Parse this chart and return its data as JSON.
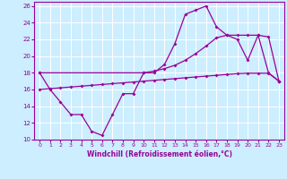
{
  "xlabel": "Windchill (Refroidissement éolien,°C)",
  "bg_color": "#cceeff",
  "grid_color": "#ffffff",
  "line_color": "#990099",
  "xlim": [
    -0.5,
    23.5
  ],
  "ylim": [
    10,
    26.5
  ],
  "yticks": [
    10,
    12,
    14,
    16,
    18,
    20,
    22,
    24,
    26
  ],
  "xticks": [
    0,
    1,
    2,
    3,
    4,
    5,
    6,
    7,
    8,
    9,
    10,
    11,
    12,
    13,
    14,
    15,
    16,
    17,
    18,
    19,
    20,
    21,
    22,
    23
  ],
  "series1_x": [
    0,
    1,
    2,
    3,
    4,
    5,
    6,
    7,
    8,
    9,
    10,
    11,
    12,
    13,
    14,
    15,
    16,
    17,
    18,
    19,
    20,
    21,
    22,
    23
  ],
  "series1_y": [
    18,
    16,
    14.5,
    13,
    13,
    11,
    10.5,
    13,
    15.5,
    15.5,
    18,
    18,
    19,
    21.5,
    25,
    25.5,
    26,
    23.5,
    22.5,
    22.0,
    19.5,
    22.5,
    18,
    17
  ],
  "series2_x": [
    0,
    10,
    11,
    12,
    13,
    14,
    15,
    16,
    17,
    18,
    19,
    20,
    21,
    22,
    23
  ],
  "series2_y": [
    18,
    18.0,
    18.2,
    18.5,
    18.9,
    19.5,
    20.3,
    21.2,
    22.2,
    22.5,
    22.5,
    22.5,
    22.5,
    22.3,
    17.0
  ],
  "series3_x": [
    0,
    1,
    2,
    3,
    4,
    5,
    6,
    7,
    8,
    9,
    10,
    11,
    12,
    13,
    14,
    15,
    16,
    17,
    18,
    19,
    20,
    21,
    22,
    23
  ],
  "series3_y": [
    16,
    16.1,
    16.2,
    16.3,
    16.4,
    16.5,
    16.6,
    16.7,
    16.8,
    16.9,
    17.0,
    17.1,
    17.2,
    17.3,
    17.4,
    17.5,
    17.6,
    17.7,
    17.8,
    17.9,
    17.95,
    17.95,
    17.95,
    17.0
  ]
}
